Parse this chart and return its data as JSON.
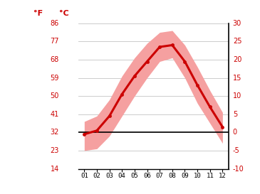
{
  "months": [
    1,
    2,
    3,
    4,
    5,
    6,
    7,
    8,
    9,
    10,
    11,
    12
  ],
  "avg_temp": [
    -0.5,
    0.5,
    4.5,
    10.5,
    15.5,
    19.5,
    23.5,
    24.0,
    19.5,
    13.0,
    7.0,
    1.5
  ],
  "max_temp": [
    3.0,
    4.5,
    9.0,
    15.5,
    20.5,
    24.5,
    27.5,
    28.0,
    24.0,
    18.0,
    11.5,
    5.5
  ],
  "min_temp": [
    -5.0,
    -4.5,
    -1.0,
    4.5,
    10.0,
    15.0,
    19.5,
    20.5,
    15.0,
    8.0,
    2.5,
    -3.0
  ],
  "ylim": [
    -10,
    30
  ],
  "yticks_c": [
    -10,
    -5,
    0,
    5,
    10,
    15,
    20,
    25,
    30
  ],
  "yticks_f": [
    14,
    23,
    32,
    41,
    50,
    59,
    68,
    77,
    86
  ],
  "xlabel_ticks": [
    "01",
    "02",
    "03",
    "04",
    "05",
    "06",
    "07",
    "08",
    "09",
    "10",
    "11",
    "12"
  ],
  "line_color": "#cc0000",
  "band_color": "#f5a0a0",
  "zero_line_color": "#000000",
  "grid_color": "#cccccc",
  "label_color_red": "#cc0000",
  "left_label_f": "°F",
  "left_label_c": "°C",
  "background_color": "#ffffff"
}
